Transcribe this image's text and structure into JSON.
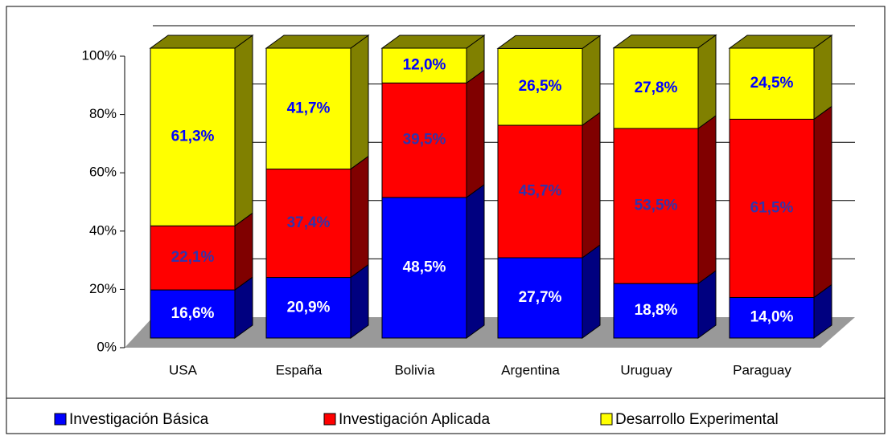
{
  "chart_data": {
    "type": "bar3d_stacked_percent",
    "categories": [
      "USA",
      "España",
      "Bolivia",
      "Argentina",
      "Uruguay",
      "Paraguay"
    ],
    "series": [
      {
        "name": "Investigación Básica",
        "color": "#0000ff",
        "values": [
          16.6,
          20.9,
          48.5,
          27.7,
          18.8,
          14.0
        ],
        "value_labels": [
          "16,6%",
          "20,9%",
          "48,5%",
          "27,7%",
          "18,8%",
          "14,0%"
        ]
      },
      {
        "name": "Investigación Aplicada",
        "color": "#ff0000",
        "values": [
          22.1,
          37.4,
          39.5,
          45.7,
          53.5,
          61.5
        ],
        "value_labels": [
          "22,1%",
          "37,4%",
          "39,5%",
          "45,7%",
          "53,5%",
          "61,5%"
        ]
      },
      {
        "name": "Desarrollo Experimental",
        "color": "#ffff00",
        "values": [
          61.3,
          41.7,
          12.0,
          26.5,
          27.8,
          24.5
        ],
        "value_labels": [
          "61,3%",
          "41,7%",
          "12,0%",
          "26,5%",
          "27,8%",
          "24,5%"
        ]
      }
    ],
    "ylim": [
      0,
      100
    ],
    "yticks": [
      {
        "value": 0,
        "label": "0%"
      },
      {
        "value": 20,
        "label": "20%"
      },
      {
        "value": 40,
        "label": "40%"
      },
      {
        "value": 60,
        "label": "60%"
      },
      {
        "value": 80,
        "label": "80%"
      },
      {
        "value": 100,
        "label": "100%"
      }
    ],
    "grid": true,
    "legend": "bottom"
  }
}
